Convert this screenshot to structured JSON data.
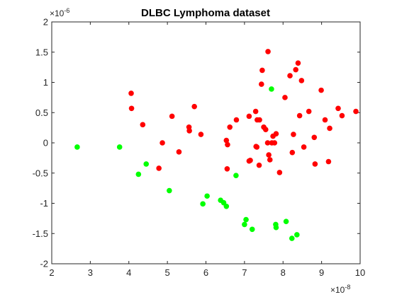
{
  "chart_data": {
    "type": "scatter",
    "title": "DLBC Lymphoma dataset",
    "xlabel": "",
    "ylabel": "",
    "xlim": [
      2e-08,
      1e-07
    ],
    "ylim": [
      -2e-06,
      2e-06
    ],
    "x_ticks": [
      "2",
      "3",
      "4",
      "5",
      "6",
      "7",
      "8",
      "9",
      "10"
    ],
    "y_ticks": [
      "2",
      "1.5",
      "1",
      "0.5",
      "0",
      "-0.5",
      "-1",
      "-1.5",
      "-2"
    ],
    "x_exponent": "×10",
    "x_exponent_power": "-8",
    "y_exponent": "×10",
    "y_exponent_power": "-6",
    "grid": false,
    "legend": "none",
    "series": [
      {
        "color": "#ff0000",
        "points": [
          [
            4.06e-08,
            8.2e-07
          ],
          [
            4.07e-08,
            5.7e-07
          ],
          [
            4.36e-08,
            3e-07
          ],
          [
            4.78e-08,
            -4.2e-07
          ],
          [
            4.87e-08,
            0.0
          ],
          [
            5.12e-08,
            4.4e-07
          ],
          [
            5.3e-08,
            -1.5e-07
          ],
          [
            5.56e-08,
            2.6e-07
          ],
          [
            5.57e-08,
            2e-07
          ],
          [
            5.7e-08,
            6e-07
          ],
          [
            5.87e-08,
            1.4e-07
          ],
          [
            6.53e-08,
            4e-08
          ],
          [
            6.56e-08,
            -3e-08
          ],
          [
            6.55e-08,
            -4.3e-07
          ],
          [
            6.62e-08,
            2.6e-07
          ],
          [
            6.79e-08,
            3.8e-07
          ],
          [
            7.12e-08,
            4.4e-07
          ],
          [
            7.12e-08,
            -3e-07
          ],
          [
            7.15e-08,
            -2.9e-07
          ],
          [
            7.29e-08,
            5.2e-07
          ],
          [
            7.3e-08,
            -6e-08
          ],
          [
            7.32e-08,
            -7e-08
          ],
          [
            7.33e-08,
            3.8e-07
          ],
          [
            7.39e-08,
            3.8e-07
          ],
          [
            7.38e-08,
            -3.7e-07
          ],
          [
            7.44e-08,
            9.7e-07
          ],
          [
            7.46e-08,
            1.2e-06
          ],
          [
            7.5e-08,
            2.6e-07
          ],
          [
            7.55e-08,
            2.2e-07
          ],
          [
            7.61e-08,
            1.51e-06
          ],
          [
            7.6e-08,
            0.0
          ],
          [
            7.63e-08,
            -2e-07
          ],
          [
            7.66e-08,
            -2.8e-07
          ],
          [
            7.71e-08,
            0.0
          ],
          [
            7.74e-08,
            1.1e-07
          ],
          [
            7.78e-08,
            0.0
          ],
          [
            7.82e-08,
            1.5e-07
          ],
          [
            7.91e-08,
            -4.9e-07
          ],
          [
            8.05e-08,
            7.5e-07
          ],
          [
            8.18e-08,
            1.11e-06
          ],
          [
            8.24e-08,
            -1.6e-07
          ],
          [
            8.27e-08,
            1.4e-07
          ],
          [
            8.33e-08,
            1.21e-06
          ],
          [
            8.39e-08,
            1.32e-06
          ],
          [
            8.43e-08,
            4.5e-07
          ],
          [
            8.48e-08,
            1.03e-06
          ],
          [
            8.54e-08,
            -7e-08
          ],
          [
            8.67e-08,
            5.2e-07
          ],
          [
            8.81e-08,
            9e-08
          ],
          [
            8.83e-08,
            -3.5e-07
          ],
          [
            8.99e-08,
            8.7e-07
          ],
          [
            9.09e-08,
            3.8e-07
          ],
          [
            9.18e-08,
            -3.1e-07
          ],
          [
            9.21e-08,
            2.4e-07
          ],
          [
            9.43e-08,
            5.7e-07
          ],
          [
            9.53e-08,
            4.5e-07
          ],
          [
            9.89e-08,
            5.2e-07
          ]
        ]
      },
      {
        "color": "#00ff00",
        "points": [
          [
            2.66e-08,
            -7e-08
          ],
          [
            3.76e-08,
            -7e-08
          ],
          [
            4.25e-08,
            -5.2e-07
          ],
          [
            4.45e-08,
            -3.5e-07
          ],
          [
            5.05e-08,
            -7.9e-07
          ],
          [
            5.92e-08,
            -1.01e-06
          ],
          [
            6.03e-08,
            -8.8e-07
          ],
          [
            6.38e-08,
            -9.5e-07
          ],
          [
            6.46e-08,
            -9.9e-07
          ],
          [
            6.53e-08,
            -1.05e-06
          ],
          [
            6.78e-08,
            -5.4e-07
          ],
          [
            7e-08,
            -1.35e-06
          ],
          [
            7.04e-08,
            -1.27e-06
          ],
          [
            7.2e-08,
            -1.43e-06
          ],
          [
            7.7e-08,
            8.9e-07
          ],
          [
            7.81e-08,
            -1.35e-06
          ],
          [
            7.82e-08,
            -1.4e-06
          ],
          [
            8.08e-08,
            -1.3e-06
          ],
          [
            8.23e-08,
            -1.58e-06
          ],
          [
            8.36e-08,
            -1.52e-06
          ]
        ]
      }
    ]
  }
}
